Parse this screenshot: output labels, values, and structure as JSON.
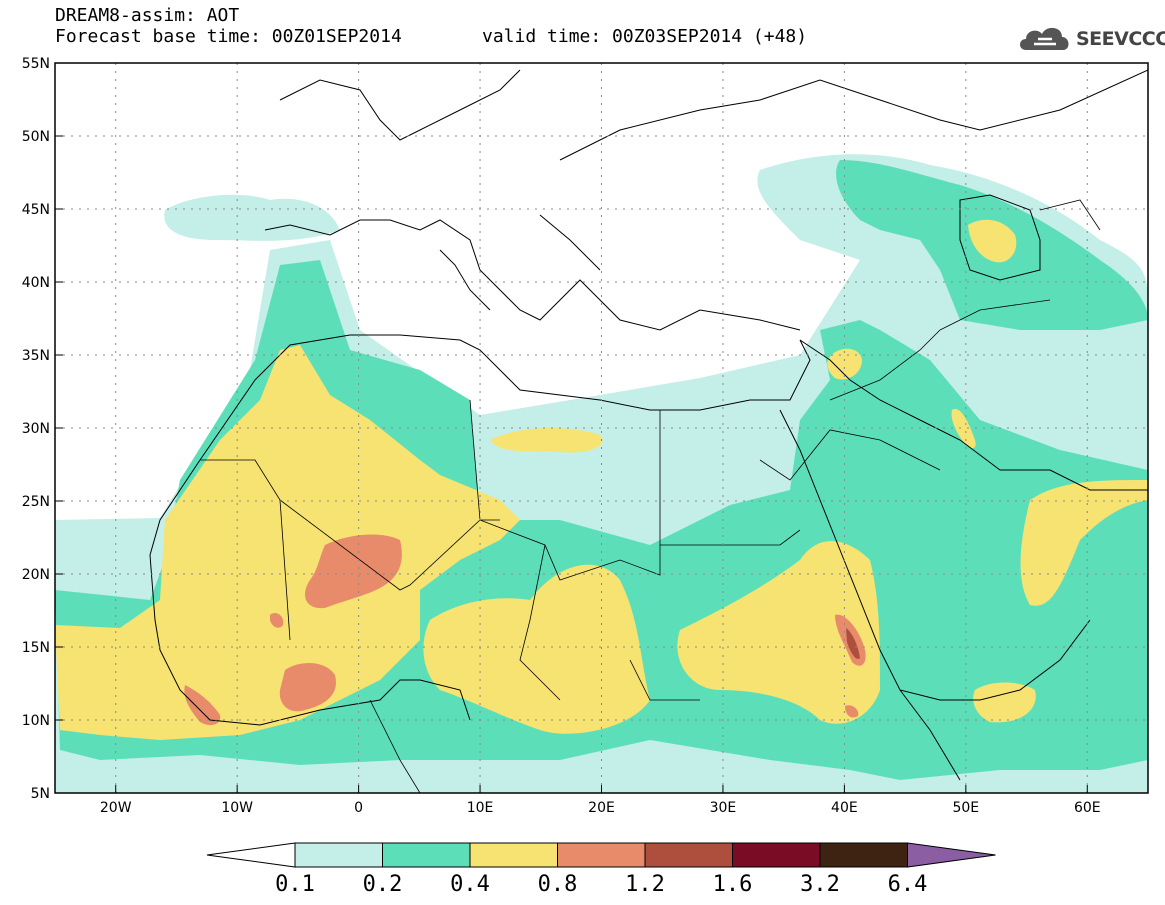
{
  "title": {
    "line1": "DREAM8-assim: AOT",
    "line2": "Forecast base time: 00Z01SEP2014",
    "valid": "valid time: 00Z03SEP2014 (+48)"
  },
  "logo": {
    "text": "SEEVCCC",
    "icon": "cloud-icon"
  },
  "map": {
    "lon_range": [
      -25,
      65
    ],
    "lat_range": [
      5,
      55
    ],
    "lon_ticks": [
      {
        "value": -20,
        "label": "20W"
      },
      {
        "value": -10,
        "label": "10W"
      },
      {
        "value": 0,
        "label": "0"
      },
      {
        "value": 10,
        "label": "10E"
      },
      {
        "value": 20,
        "label": "20E"
      },
      {
        "value": 30,
        "label": "30E"
      },
      {
        "value": 40,
        "label": "40E"
      },
      {
        "value": 50,
        "label": "50E"
      },
      {
        "value": 60,
        "label": "60E"
      }
    ],
    "lat_ticks": [
      {
        "value": 55,
        "label": "55N"
      },
      {
        "value": 50,
        "label": "50N"
      },
      {
        "value": 45,
        "label": "45N"
      },
      {
        "value": 40,
        "label": "40N"
      },
      {
        "value": 35,
        "label": "35N"
      },
      {
        "value": 30,
        "label": "30N"
      },
      {
        "value": 25,
        "label": "25N"
      },
      {
        "value": 20,
        "label": "20N"
      },
      {
        "value": 15,
        "label": "15N"
      },
      {
        "value": 10,
        "label": "10N"
      },
      {
        "value": 5,
        "label": "5N"
      }
    ],
    "grid": true
  },
  "colorbar": {
    "labels": [
      "0.1",
      "0.2",
      "0.4",
      "0.8",
      "1.2",
      "1.6",
      "3.2",
      "6.4"
    ],
    "colors": [
      "#ffffff",
      "#c4eee8",
      "#5cdfb9",
      "#f6e372",
      "#e88b6b",
      "#ae4f3d",
      "#7a0c25",
      "#3f2312",
      "#8b5ea4"
    ]
  }
}
